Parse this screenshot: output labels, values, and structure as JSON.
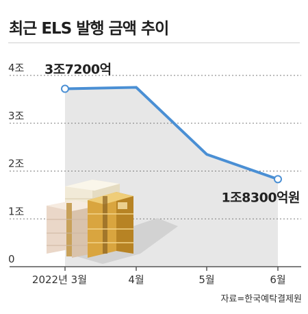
{
  "header": {
    "title": "최근 ELS 발행 금액 추이"
  },
  "footer": {
    "source": "자료=한국예탁결제원"
  },
  "colors": {
    "line": "#4a8fd4",
    "area": "#e7e7e7",
    "grid": "#7a7a7a",
    "axis": "#555555",
    "text": "#222222"
  },
  "illustration": "gold-banknote-stacks",
  "chart_data": {
    "type": "line",
    "categories": [
      "2022년 3월",
      "4월",
      "5월",
      "6월"
    ],
    "values": [
      3.72,
      3.75,
      2.35,
      1.83
    ],
    "y_unit": "조",
    "y_ticks": [
      {
        "value": 0,
        "label": "0"
      },
      {
        "value": 1,
        "label": "1조"
      },
      {
        "value": 2,
        "label": "2조"
      },
      {
        "value": 3,
        "label": "3조"
      },
      {
        "value": 4,
        "label": "4조"
      }
    ],
    "ylim": [
      0,
      4
    ],
    "grid": true,
    "annotations": [
      {
        "index": 0,
        "text": "3조7200억"
      },
      {
        "index": 3,
        "text": "1조8300억원"
      }
    ]
  }
}
